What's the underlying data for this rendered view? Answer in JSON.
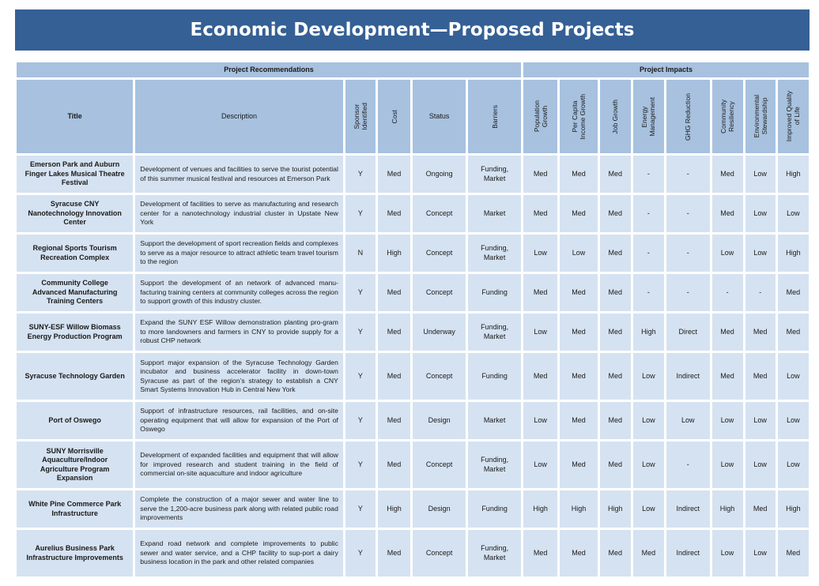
{
  "title": "Economic Development—Proposed Projects",
  "groups": {
    "recommendations": "Project Recommendations",
    "impacts": "Project Impacts"
  },
  "columns": {
    "title": "Title",
    "description": "Description",
    "sponsor": [
      "Sponsor",
      "Identified"
    ],
    "cost": "Cost",
    "status": "Status",
    "barriers": "Barriers",
    "impacts": [
      [
        "Population",
        "Growth"
      ],
      [
        "Per Capita",
        "Income Growth"
      ],
      [
        "Job Growth"
      ],
      [
        "Energy",
        "Management"
      ],
      [
        "GHG Reduction"
      ],
      [
        "Community",
        "Resiliency"
      ],
      [
        "Environmental",
        "Stewardship"
      ],
      [
        "Improved Quality",
        "of Life"
      ]
    ]
  },
  "rows": [
    {
      "title": [
        "Emerson Park and Auburn",
        "Finger Lakes Musical Theatre",
        "Festival"
      ],
      "description": "Development of venues and facilities to serve the tourist potential of this summer musical festival and resources at Emerson Park",
      "sponsor": "Y",
      "cost": "Med",
      "status": "Ongoing",
      "barriers": [
        "Funding,",
        "Market"
      ],
      "impacts": [
        "Med",
        "Med",
        "Med",
        "-",
        "-",
        "Med",
        "Low",
        "High"
      ]
    },
    {
      "title": [
        "Syracuse CNY",
        "Nanotechnology Innovation",
        "Center"
      ],
      "description": "Development of facilities to serve as manufacturing and research center for a nanotechnology industrial cluster in Upstate New York",
      "sponsor": "Y",
      "cost": "Med",
      "status": "Concept",
      "barriers": [
        "Market"
      ],
      "impacts": [
        "Med",
        "Med",
        "Med",
        "-",
        "-",
        "Med",
        "Low",
        "Low"
      ]
    },
    {
      "title": [
        "Regional Sports Tourism",
        "Recreation Complex"
      ],
      "description": "Support the development of sport recreation fields and complexes to serve as a major resource to attract athletic team travel tourism  to the region",
      "sponsor": "N",
      "cost": "High",
      "status": "Concept",
      "barriers": [
        "Funding,",
        "Market"
      ],
      "impacts": [
        "Low",
        "Low",
        "Med",
        "-",
        "-",
        "Low",
        "Low",
        "High"
      ]
    },
    {
      "title": [
        "Community College",
        "Advanced Manufacturing",
        "Training Centers"
      ],
      "description": "Support the development of an network of advanced manu-facturing training centers at community colleges across the region to support growth of this industry cluster.",
      "sponsor": "Y",
      "cost": "Med",
      "status": "Concept",
      "barriers": [
        "Funding"
      ],
      "impacts": [
        "Med",
        "Med",
        "Med",
        "-",
        "-",
        "-",
        "-",
        "Med"
      ]
    },
    {
      "title": [
        "SUNY-ESF Willow Biomass",
        "Energy Production Program"
      ],
      "description": "Expand the SUNY ESF Willow demonstration planting pro-gram to more landowners and farmers in CNY to provide supply for a robust CHP network",
      "sponsor": "Y",
      "cost": "Med",
      "status": "Underway",
      "barriers": [
        "Funding,",
        "Market"
      ],
      "impacts": [
        "Low",
        "Med",
        "Med",
        "High",
        "Direct",
        "Med",
        "Med",
        "Med"
      ]
    },
    {
      "title": [
        "Syracuse Technology Garden"
      ],
      "description": "Support major expansion of the Syracuse Technology Garden incubator and business accelerator facility in down-town Syracuse as part of the region’s strategy to establish a CNY Smart Systems Innovation Hub in Central New York",
      "sponsor": "Y",
      "cost": "Med",
      "status": "Concept",
      "barriers": [
        "Funding"
      ],
      "impacts": [
        "Med",
        "Med",
        "Med",
        "Low",
        "Indirect",
        "Med",
        "Med",
        "Low"
      ]
    },
    {
      "title": [
        "Port of Oswego"
      ],
      "description": "Support of infrastructure resources, rail facilities, and on-site operating equipment that will allow for expansion of the Port of Oswego",
      "sponsor": "Y",
      "cost": "Med",
      "status": "Design",
      "barriers": [
        "Market"
      ],
      "impacts": [
        "Low",
        "Med",
        "Med",
        "Low",
        "Low",
        "Low",
        "Low",
        "Low"
      ]
    },
    {
      "title": [
        "SUNY Morrisville",
        "Aquaculture/Indoor",
        "Agriculture Program",
        "Expansion"
      ],
      "description": "Development of expanded facilities and equipment that will allow for improved research and student training in the field of commercial on-site aquaculture and indoor agriculture",
      "sponsor": "Y",
      "cost": "Med",
      "status": "Concept",
      "barriers": [
        "Funding,",
        "Market"
      ],
      "impacts": [
        "Low",
        "Med",
        "Med",
        "Low",
        "-",
        "Low",
        "Low",
        "Low"
      ]
    },
    {
      "title": [
        "White Pine Commerce Park",
        "Infrastructure"
      ],
      "description": "Complete the construction of a major sewer and water line to serve the 1,200-acre business park along with related public road improvements",
      "sponsor": "Y",
      "cost": "High",
      "status": "Design",
      "barriers": [
        "Funding"
      ],
      "impacts": [
        "High",
        "High",
        "High",
        "Low",
        "Indirect",
        "High",
        "Med",
        "High"
      ]
    },
    {
      "title": [
        "Aurelius Business Park",
        "Infrastructure Improvements"
      ],
      "description": "Expand road network and complete improvements to public sewer and water service, and a CHP facility to sup-port a dairy business location in the park and other related companies",
      "sponsor": "Y",
      "cost": "Med",
      "status": "Concept",
      "barriers": [
        "Funding,",
        "Market"
      ],
      "impacts": [
        "Med",
        "Med",
        "Med",
        "Med",
        "Indirect",
        "Low",
        "Low",
        "Med"
      ]
    }
  ]
}
